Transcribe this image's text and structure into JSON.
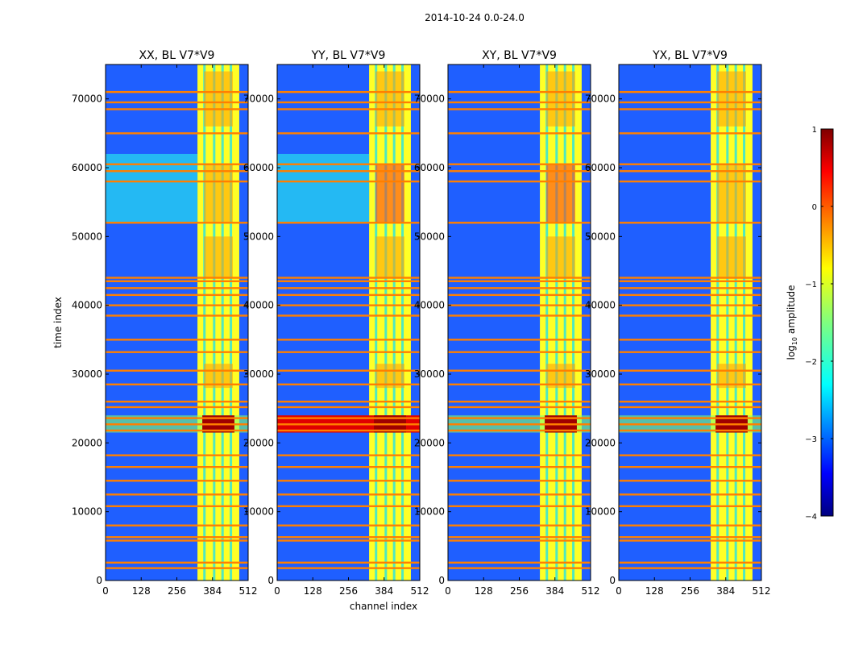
{
  "figure": {
    "suptitle": "2014-10-24 0.0-24.0",
    "xlabel": "channel index",
    "ylabel": "time index"
  },
  "chart_data": {
    "type": "heatmap",
    "colormap": "jet",
    "panels": [
      {
        "title": "XX, BL V7*V9",
        "pol": "XX"
      },
      {
        "title": "YY, BL V7*V9",
        "pol": "YY"
      },
      {
        "title": "XY, BL V7*V9",
        "pol": "XY"
      },
      {
        "title": "YX, BL V7*V9",
        "pol": "YX"
      }
    ],
    "xlim": [
      0,
      512
    ],
    "ylim": [
      0,
      75000
    ],
    "xticks": [
      0,
      128,
      256,
      384,
      512
    ],
    "xtick_labels": [
      "0",
      "128",
      "256",
      "384",
      "512"
    ],
    "yticks": [
      0,
      10000,
      20000,
      30000,
      40000,
      50000,
      60000,
      70000
    ],
    "ytick_labels": [
      "0",
      "10000",
      "20000",
      "30000",
      "40000",
      "50000",
      "60000",
      "70000"
    ],
    "signal_channel_band": [
      330,
      480
    ],
    "signal_band_gaps": [
      355,
      390,
      420,
      450
    ],
    "flagged_time_rows": [
      1800,
      2600,
      5800,
      6300,
      8000,
      10800,
      12500,
      14500,
      16500,
      18200,
      21800,
      22700,
      23600,
      25200,
      26000,
      28500,
      30500,
      33200,
      35000,
      38500,
      40000,
      41500,
      42500,
      43500,
      44000,
      52000,
      58000,
      59500,
      60500,
      65000,
      68500,
      69500,
      71000
    ],
    "bright_time_band": [
      21500,
      24000
    ],
    "colorbar": {
      "label": "log10 amplitude",
      "min": -4,
      "max": 1,
      "ticks": [
        1,
        0,
        -1,
        -2,
        -3,
        -4
      ],
      "tick_labels": [
        "1",
        "0",
        "−1",
        "−2",
        "−3",
        "−4"
      ]
    }
  }
}
